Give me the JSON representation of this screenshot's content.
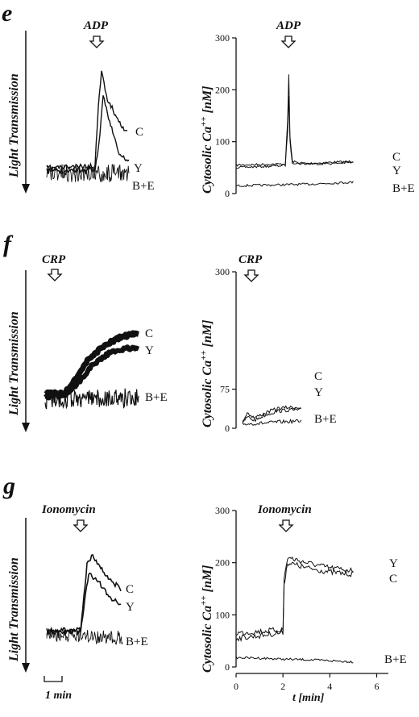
{
  "figure": {
    "light_transmission_label": "Light Transmission",
    "cytosolic_label_prefix": "Cytosolic Ca",
    "cytosolic_label_sup": "++",
    "cytosolic_label_suffix": " [nM]",
    "scale_bar_label": "1 min",
    "x_axis_label": "t [min]"
  },
  "panels": [
    {
      "letter": "e",
      "stimulus": "ADP",
      "aggregation_labels": [
        "C",
        "Y",
        "B+E"
      ],
      "calcium_labels": [
        "C",
        "Y",
        "B+E"
      ]
    },
    {
      "letter": "f",
      "stimulus": "CRP",
      "aggregation_labels": [
        "C",
        "Y",
        "B+E"
      ],
      "calcium_labels": [
        "C",
        "Y",
        "B+E"
      ]
    },
    {
      "letter": "g",
      "stimulus": "Ionomycin",
      "aggregation_labels": [
        "C",
        "Y",
        "B+E"
      ],
      "calcium_labels": [
        "Y",
        "C",
        "B+E"
      ]
    }
  ],
  "chart_data": [
    {
      "type": "line",
      "panel": "e",
      "ylabel": "Cytosolic Ca++ [nM]",
      "ylim": [
        0,
        300
      ],
      "yticks": [
        0,
        100,
        200,
        300
      ],
      "xlim": [
        0,
        6.5
      ],
      "stimulus_time_min": 2.2,
      "series": [
        {
          "name": "C",
          "x": [
            0,
            2.0,
            2.1,
            2.2,
            2.25,
            2.3,
            2.4,
            2.6,
            3,
            4,
            5
          ],
          "y": [
            55,
            57,
            57,
            140,
            230,
            110,
            62,
            60,
            58,
            60,
            62
          ]
        },
        {
          "name": "Y",
          "x": [
            0,
            2.0,
            2.1,
            2.2,
            2.25,
            2.3,
            2.4,
            2.6,
            3,
            4,
            5
          ],
          "y": [
            50,
            54,
            55,
            120,
            190,
            100,
            60,
            58,
            57,
            58,
            60
          ]
        },
        {
          "name": "B+E",
          "x": [
            0,
            1,
            2,
            3,
            4,
            5
          ],
          "y": [
            15,
            16,
            17,
            18,
            20,
            22
          ]
        }
      ]
    },
    {
      "type": "line",
      "panel": "f",
      "ylabel": "Cytosolic Ca++ [nM]",
      "ylim": [
        0,
        300
      ],
      "yticks": [
        0,
        75,
        300
      ],
      "xlim": [
        0,
        6.5
      ],
      "stimulus_time_min": 0.9,
      "series": [
        {
          "name": "C",
          "x": [
            0,
            0.2,
            0.5,
            1.0,
            1.5,
            2.0,
            2.5
          ],
          "y": [
            12,
            30,
            20,
            30,
            38,
            40,
            40
          ]
        },
        {
          "name": "Y",
          "x": [
            0,
            0.2,
            0.5,
            1.0,
            1.5,
            2.0,
            2.5
          ],
          "y": [
            10,
            22,
            15,
            26,
            33,
            35,
            35
          ]
        },
        {
          "name": "B+E",
          "x": [
            0,
            0.5,
            1.0,
            1.5,
            2.0,
            2.5
          ],
          "y": [
            8,
            9,
            10,
            12,
            13,
            14
          ]
        }
      ]
    },
    {
      "type": "line",
      "panel": "g",
      "ylabel": "Cytosolic Ca++ [nM]",
      "xlabel": "t [min]",
      "ylim": [
        0,
        300
      ],
      "yticks": [
        0,
        100,
        200,
        300
      ],
      "xlim": [
        0,
        6.5
      ],
      "xticks": [
        0,
        2,
        4,
        6
      ],
      "stimulus_time_min": 2.0,
      "series": [
        {
          "name": "Y",
          "x": [
            0,
            1,
            2.0,
            2.05,
            2.2,
            3,
            4,
            5
          ],
          "y": [
            65,
            68,
            72,
            170,
            210,
            200,
            190,
            185
          ]
        },
        {
          "name": "C",
          "x": [
            0,
            1,
            2.0,
            2.05,
            2.2,
            3,
            4,
            5
          ],
          "y": [
            55,
            60,
            66,
            160,
            200,
            190,
            182,
            178
          ]
        },
        {
          "name": "B+E",
          "x": [
            0,
            1,
            2,
            3,
            4,
            5
          ],
          "y": [
            18,
            17,
            15,
            14,
            12,
            10
          ]
        }
      ]
    }
  ]
}
